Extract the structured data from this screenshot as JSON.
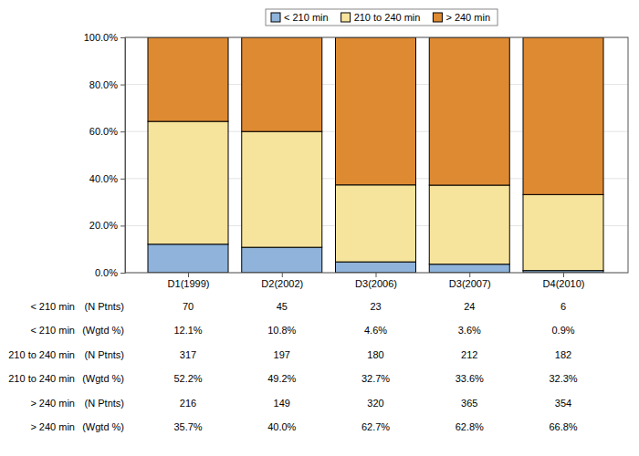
{
  "chart_data": {
    "type": "bar",
    "stacked": true,
    "grid": true,
    "categories": [
      "D1(1999)",
      "D2(2002)",
      "D3(2006)",
      "D3(2007)",
      "D4(2010)"
    ],
    "ylim": [
      0,
      100
    ],
    "yticks": [
      {
        "value": 0,
        "label": "0.0%"
      },
      {
        "value": 20,
        "label": "20.0%"
      },
      {
        "value": 40,
        "label": "40.0%"
      },
      {
        "value": 60,
        "label": "60.0%"
      },
      {
        "value": 80,
        "label": "80.0%"
      },
      {
        "value": 100,
        "label": "100.0%"
      }
    ],
    "count_label": "(N Ptnts)",
    "percent_label": "(Wgtd %)",
    "series": [
      {
        "name": "< 210 min",
        "color": "#8fb3da",
        "values": [
          12.1,
          10.8,
          4.6,
          3.6,
          0.9
        ],
        "value_labels": [
          "12.1%",
          "10.8%",
          "4.6%",
          "3.6%",
          "0.9%"
        ],
        "n_patients": [
          70,
          45,
          23,
          24,
          6
        ]
      },
      {
        "name": "210 to 240 min",
        "color": "#f7e49c",
        "values": [
          52.2,
          49.2,
          32.7,
          33.6,
          32.3
        ],
        "value_labels": [
          "52.2%",
          "49.2%",
          "32.7%",
          "33.6%",
          "32.3%"
        ],
        "n_patients": [
          317,
          197,
          180,
          212,
          182
        ]
      },
      {
        "name": "> 240 min",
        "color": "#de8a33",
        "values": [
          35.7,
          40.0,
          62.7,
          62.8,
          66.8
        ],
        "value_labels": [
          "35.7%",
          "40.0%",
          "62.7%",
          "62.8%",
          "66.8%"
        ],
        "n_patients": [
          216,
          149,
          320,
          365,
          354
        ]
      }
    ]
  }
}
